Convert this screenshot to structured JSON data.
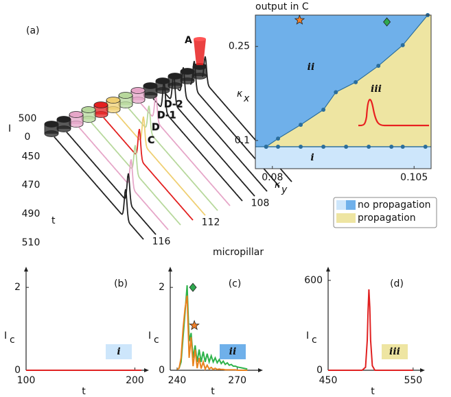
{
  "chart_data": [
    {
      "type": "waterfall",
      "label": "(a)",
      "source_label": "A",
      "xlabel": "micropillar",
      "ylabel": "t",
      "zlabel": "I",
      "xlim": [
        104,
        116
      ],
      "ylim": [
        445,
        512
      ],
      "xticks": [
        108,
        112,
        116
      ],
      "yticks": [
        450,
        470,
        490,
        510
      ],
      "zticks": [
        0,
        500
      ],
      "traces": [
        {
          "pillar": 104,
          "color": "#222222",
          "peak_t": 449,
          "peak_I": 700
        },
        {
          "pillar": 105,
          "color": "#222222",
          "peak_t": 450,
          "peak_I": 750
        },
        {
          "pillar": 106,
          "color": "#222222",
          "peak_t": 451,
          "peak_I": 750
        },
        {
          "pillar": 107,
          "color": "#222222",
          "peak_t": 453,
          "peak_I": 800
        },
        {
          "pillar": 108,
          "color": "#222222",
          "peak_t": 455,
          "peak_I": 800
        },
        {
          "pillar": 109,
          "color": "#e6a6c8",
          "peak_t": 458,
          "peak_I": 700,
          "label": "D-2"
        },
        {
          "pillar": 110,
          "color": "#b7d89c",
          "peak_t": 462,
          "peak_I": 700,
          "label": "D-1"
        },
        {
          "pillar": 111,
          "color": "#efcf72",
          "peak_t": 467,
          "peak_I": 750,
          "label": "D"
        },
        {
          "pillar": 112,
          "color": "#e32020",
          "peak_t": 473,
          "peak_I": 800,
          "label": "C"
        },
        {
          "pillar": 113,
          "color": "#b7d89c",
          "peak_t": 479,
          "peak_I": 750
        },
        {
          "pillar": 114,
          "color": "#e6a6c8",
          "peak_t": 485,
          "peak_I": 750
        },
        {
          "pillar": 115,
          "color": "#222222",
          "peak_t": 492,
          "peak_I": 800
        },
        {
          "pillar": 116,
          "color": "#222222",
          "peak_t": 499,
          "peak_I": 800
        }
      ]
    },
    {
      "type": "phase",
      "title": "output in C",
      "xlabel": "κ",
      "xlabel_sub": "y",
      "ylabel": "κ",
      "ylabel_sub": "x",
      "xlim": [
        0.077,
        0.108
      ],
      "ylim": [
        0.055,
        0.3
      ],
      "xticks": [
        0.08,
        0.105
      ],
      "yticks": [
        0.1,
        0.25
      ],
      "line_color": "#2b6e9c",
      "lower": {
        "x": [
          0.0789,
          0.081,
          0.085,
          0.089,
          0.093,
          0.097,
          0.101,
          0.103,
          0.107
        ],
        "y": [
          0.09,
          0.09,
          0.09,
          0.09,
          0.09,
          0.09,
          0.09,
          0.09,
          0.09
        ]
      },
      "upper": {
        "x": [
          0.0789,
          0.081,
          0.085,
          0.089,
          0.0912,
          0.0947,
          0.0987,
          0.103,
          0.1074
        ],
        "y": [
          0.09,
          0.103,
          0.125,
          0.149,
          0.177,
          0.193,
          0.219,
          0.252,
          0.3
        ]
      },
      "regions": [
        {
          "label": "i",
          "color": "#cde6fb"
        },
        {
          "label": "ii",
          "color": "#6fb0ea"
        },
        {
          "label": "iii",
          "color": "#eee5a2"
        }
      ],
      "legend": [
        {
          "label": "no propagation",
          "colors": [
            "#cde6fb",
            "#6fb0ea"
          ]
        },
        {
          "label": "propagation",
          "colors": [
            "#eee5a2"
          ]
        }
      ],
      "markers": [
        {
          "x": 0.0848,
          "y": 0.292,
          "shape": "star",
          "color": "#f07f2a"
        },
        {
          "x": 0.1002,
          "y": 0.289,
          "shape": "diamond",
          "color": "#2fa84f"
        }
      ]
    },
    {
      "type": "line",
      "label": "(b)",
      "region": "i",
      "region_color": "#cde6fb",
      "xlabel": "t",
      "ylabel": "I",
      "ylabel_sub": "c",
      "xlim": [
        100,
        206
      ],
      "ylim": [
        0,
        2.35
      ],
      "xticks": [
        100,
        200
      ],
      "yticks": [
        0,
        2
      ],
      "x": [
        100,
        206
      ],
      "series": [
        {
          "color": "#e02020",
          "values": [
            0,
            0
          ]
        }
      ]
    },
    {
      "type": "line",
      "label": "(c)",
      "region": "ii",
      "region_color": "#6fb0ea",
      "xlabel": "t",
      "ylabel": "I",
      "ylabel_sub": "c",
      "xlim": [
        236.6,
        279
      ],
      "ylim": [
        0,
        2.35
      ],
      "xticks": [
        240,
        270
      ],
      "yticks": [
        0,
        2
      ],
      "x": [
        240,
        241,
        242,
        243,
        244,
        245,
        246,
        247,
        248,
        249,
        250,
        251,
        252,
        253,
        254,
        255,
        256,
        257,
        258,
        259,
        260,
        261,
        262,
        263,
        264,
        265,
        266,
        267,
        268,
        269,
        270,
        271,
        272,
        273,
        274,
        275
      ],
      "series": [
        {
          "color": "#2db34a",
          "values": [
            0.02,
            0.05,
            0.2,
            0.8,
            1.4,
            2.05,
            0.7,
            0.9,
            0.3,
            0.6,
            0.2,
            0.5,
            0.2,
            0.45,
            0.2,
            0.4,
            0.2,
            0.35,
            0.2,
            0.3,
            0.18,
            0.26,
            0.16,
            0.22,
            0.14,
            0.18,
            0.12,
            0.14,
            0.1,
            0.1,
            0.08,
            0.07,
            0.06,
            0.05,
            0.04,
            0.03
          ]
        },
        {
          "color": "#e8821e",
          "values": [
            0.02,
            0.05,
            0.3,
            1.0,
            1.5,
            1.8,
            0.3,
            0.8,
            0.1,
            0.5,
            0.05,
            0.3,
            0.04,
            0.2,
            0.03,
            0.12,
            0.03,
            0.07,
            0.02,
            0.05,
            0.02,
            0.03,
            0.02,
            0.02,
            0.01,
            0.01,
            0.01,
            0.01,
            0.01,
            0.01,
            0,
            0,
            0,
            0,
            0,
            0
          ]
        }
      ],
      "markers": [
        {
          "x": 247.9,
          "y": 2.0,
          "shape": "diamond",
          "color": "#2fa84f"
        },
        {
          "x": 248.6,
          "y": 1.08,
          "shape": "star",
          "color": "#f07f2a"
        }
      ]
    },
    {
      "type": "line",
      "label": "(d)",
      "region": "iii",
      "region_color": "#eee5a2",
      "xlabel": "t",
      "ylabel": "I",
      "ylabel_sub": "c",
      "xlim": [
        450,
        555
      ],
      "ylim": [
        0,
        650
      ],
      "xticks": [
        450,
        550
      ],
      "yticks": [
        0,
        600
      ],
      "x": [
        450,
        490,
        494,
        496,
        497,
        498,
        499,
        500,
        502,
        505,
        550
      ],
      "series": [
        {
          "color": "#e02020",
          "values": [
            0,
            0,
            20,
            200,
            400,
            540,
            420,
            200,
            30,
            0,
            0
          ]
        }
      ]
    }
  ]
}
